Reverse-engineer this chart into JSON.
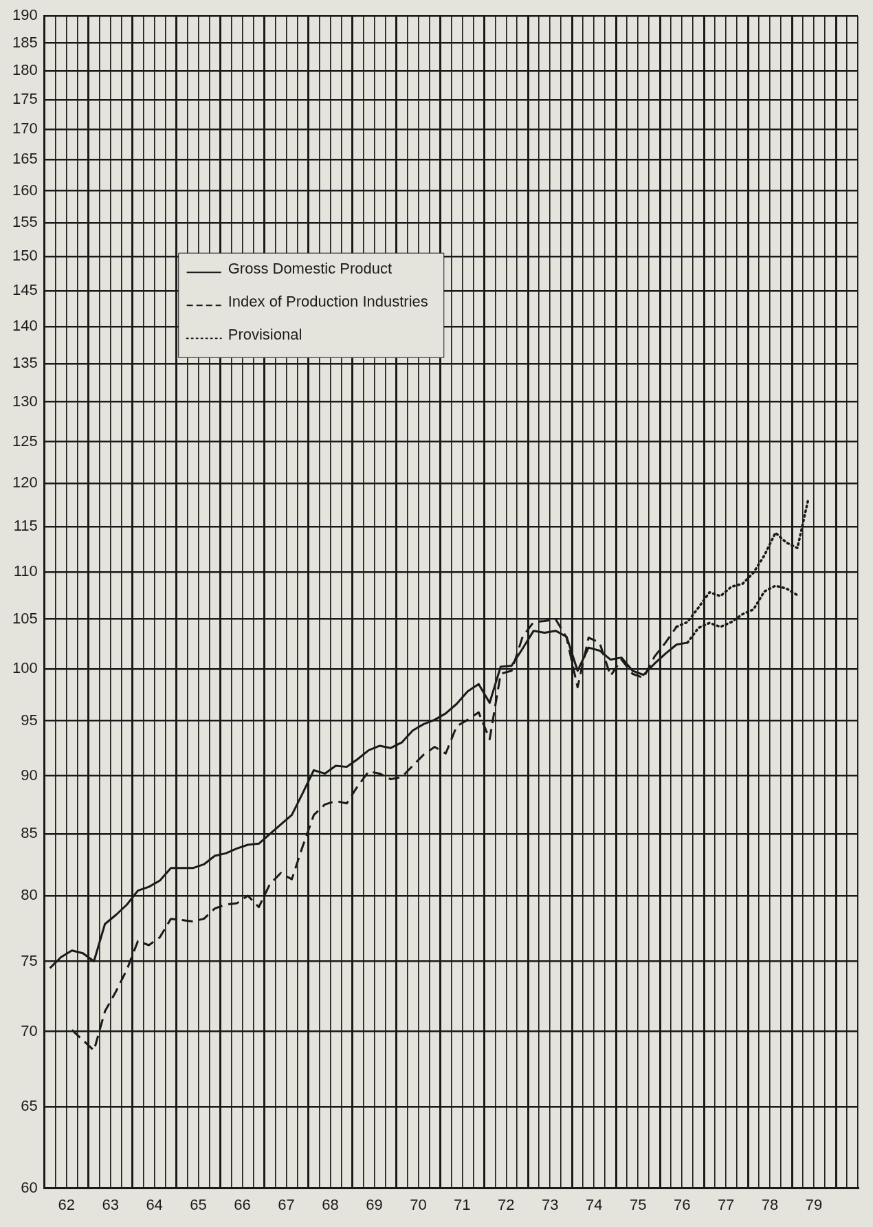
{
  "chart_data": {
    "type": "line",
    "log": true,
    "grid": true,
    "legend": "top left",
    "xlim": [
      61.5,
      80
    ],
    "ylim": [
      60,
      190
    ],
    "yticks": [
      60,
      65,
      70,
      75,
      80,
      85,
      90,
      95,
      100,
      105,
      110,
      115,
      120,
      125,
      130,
      135,
      140,
      145,
      150,
      155,
      160,
      165,
      170,
      175,
      180,
      185,
      190
    ],
    "xticks": [
      {
        "value": 61.5,
        "label": null
      },
      {
        "value": 61.75,
        "label": null
      },
      62,
      {
        "value": 62.25,
        "label": null
      },
      {
        "value": 62.5,
        "label": null
      },
      {
        "value": 62.75,
        "label": null
      },
      63,
      {
        "value": 63.25,
        "label": null
      },
      {
        "value": 63.5,
        "label": null
      },
      {
        "value": 63.75,
        "label": null
      },
      64,
      {
        "value": 64.25,
        "label": null
      },
      {
        "value": 64.5,
        "label": null
      },
      {
        "value": 64.75,
        "label": null
      },
      65,
      {
        "value": 65.25,
        "label": null
      },
      {
        "value": 65.5,
        "label": null
      },
      {
        "value": 65.75,
        "label": null
      },
      66,
      {
        "value": 66.25,
        "label": null
      },
      {
        "value": 66.5,
        "label": null
      },
      {
        "value": 66.75,
        "label": null
      },
      67,
      {
        "value": 67.25,
        "label": null
      },
      {
        "value": 67.5,
        "label": null
      },
      {
        "value": 67.75,
        "label": null
      },
      68,
      {
        "value": 68.25,
        "label": null
      },
      {
        "value": 68.5,
        "label": null
      },
      {
        "value": 68.75,
        "label": null
      },
      69,
      {
        "value": 69.25,
        "label": null
      },
      {
        "value": 69.5,
        "label": null
      },
      {
        "value": 69.75,
        "label": null
      },
      70,
      {
        "value": 70.25,
        "label": null
      },
      {
        "value": 70.5,
        "label": null
      },
      {
        "value": 70.75,
        "label": null
      },
      71,
      {
        "value": 71.25,
        "label": null
      },
      {
        "value": 71.5,
        "label": null
      },
      {
        "value": 71.75,
        "label": null
      },
      72,
      {
        "value": 72.25,
        "label": null
      },
      {
        "value": 72.5,
        "label": null
      },
      {
        "value": 72.75,
        "label": null
      },
      73,
      {
        "value": 73.25,
        "label": null
      },
      {
        "value": 73.5,
        "label": null
      },
      {
        "value": 73.75,
        "label": null
      },
      74,
      {
        "value": 74.25,
        "label": null
      },
      {
        "value": 74.5,
        "label": null
      },
      {
        "value": 74.75,
        "label": null
      },
      75,
      {
        "value": 75.25,
        "label": null
      },
      {
        "value": 75.5,
        "label": null
      },
      {
        "value": 75.75,
        "label": null
      },
      76,
      {
        "value": 76.25,
        "label": null
      },
      {
        "value": 76.5,
        "label": null
      },
      {
        "value": 76.75,
        "label": null
      },
      77,
      {
        "value": 77.25,
        "label": null
      },
      {
        "value": 77.5,
        "label": null
      },
      {
        "value": 77.75,
        "label": null
      },
      78,
      {
        "value": 78.25,
        "label": null
      },
      {
        "value": 78.5,
        "label": null
      },
      {
        "value": 78.75,
        "label": null
      },
      79,
      {
        "value": 79.25,
        "label": null
      },
      {
        "value": 79.5,
        "label": null
      },
      {
        "value": 79.75,
        "label": null
      },
      {
        "value": 80,
        "label": null
      }
    ],
    "x": [
      61.625,
      61.875,
      62.125,
      62.375,
      62.625,
      62.875,
      63.125,
      63.375,
      63.625,
      63.875,
      64.125,
      64.375,
      64.625,
      64.875,
      65.125,
      65.375,
      65.625,
      65.875,
      66.125,
      66.375,
      66.625,
      66.875,
      67.125,
      67.375,
      67.625,
      67.875,
      68.125,
      68.375,
      68.625,
      68.875,
      69.125,
      69.375,
      69.625,
      69.875,
      70.125,
      70.375,
      70.625,
      70.875,
      71.125,
      71.375,
      71.625,
      71.875,
      72.125,
      72.375,
      72.625,
      72.875,
      73.125,
      73.375,
      73.625,
      73.875,
      74.125,
      74.375,
      74.625,
      74.875,
      75.125,
      75.375,
      75.625,
      75.875,
      76.125,
      76.375,
      76.625,
      76.875,
      77.125,
      77.375,
      77.625,
      77.875,
      78.125,
      78.375,
      78.625,
      78.875
    ],
    "series": [
      {
        "name": "Gross Domestic Product",
        "color": "#1a1a1a",
        "line_style": "solid",
        "values": [
          74.5,
          75.3,
          75.8,
          75.6,
          75.0,
          77.8,
          78.5,
          79.3,
          80.4,
          80.7,
          81.2,
          82.2,
          82.2,
          82.2,
          82.5,
          83.2,
          83.4,
          83.8,
          84.1,
          84.2,
          85.0,
          85.8,
          86.6,
          88.5,
          90.5,
          90.2,
          90.9,
          90.8,
          91.5,
          92.3,
          92.7,
          92.5,
          93.0,
          94.1,
          94.7,
          95.1,
          95.7,
          96.6,
          97.8,
          98.5,
          96.7,
          100.2,
          100.3,
          102.0,
          103.8,
          103.6,
          103.8,
          103.2,
          99.8,
          102.1,
          101.8,
          100.9,
          101.1,
          99.8,
          99.4,
          100.5,
          101.5,
          102.4,
          102.6,
          null,
          null,
          null,
          null,
          null,
          null,
          null,
          null,
          null,
          null,
          null
        ]
      },
      {
        "name": "Index of Production Industries",
        "color": "#1a1a1a",
        "line_style": "dashed",
        "values": [
          null,
          null,
          70.1,
          69.4,
          68.7,
          71.4,
          72.8,
          74.4,
          76.5,
          76.2,
          76.8,
          78.2,
          78.1,
          78.0,
          78.2,
          79.0,
          79.3,
          79.4,
          80.0,
          79.1,
          80.9,
          81.8,
          81.3,
          84.0,
          86.6,
          87.5,
          87.8,
          87.6,
          89.1,
          90.4,
          90.2,
          89.7,
          89.9,
          90.9,
          91.9,
          92.6,
          92.0,
          94.5,
          95.1,
          95.8,
          93.3,
          99.5,
          99.8,
          103.2,
          104.7,
          104.8,
          105.0,
          103.1,
          98.2,
          103.1,
          102.6,
          99.3,
          100.9,
          99.5,
          99.1,
          101.2,
          102.6,
          104.2,
          null,
          null,
          null,
          null,
          null,
          null,
          null,
          null,
          null,
          null,
          null,
          null
        ]
      },
      {
        "name": "Provisional",
        "color": "#1a1a1a",
        "line_style": "dotted",
        "values": [
          null,
          null,
          null,
          null,
          null,
          null,
          null,
          null,
          null,
          null,
          null,
          null,
          null,
          null,
          null,
          null,
          null,
          null,
          null,
          null,
          null,
          null,
          null,
          null,
          null,
          null,
          null,
          null,
          null,
          null,
          null,
          null,
          null,
          null,
          null,
          null,
          null,
          null,
          null,
          null,
          null,
          null,
          null,
          null,
          null,
          null,
          null,
          null,
          null,
          null,
          null,
          null,
          null,
          null,
          null,
          null,
          null,
          104.2,
          104.7,
          106.2,
          107.8,
          107.4,
          108.4,
          108.7,
          109.9,
          111.8,
          114.3,
          113.2,
          112.6,
          118.2
        ]
      },
      {
        "color": "#1a1a1a",
        "line_style": "dotted",
        "values": [
          null,
          null,
          null,
          null,
          null,
          null,
          null,
          null,
          null,
          null,
          null,
          null,
          null,
          null,
          null,
          null,
          null,
          null,
          null,
          null,
          null,
          null,
          null,
          null,
          null,
          null,
          null,
          null,
          null,
          null,
          null,
          null,
          null,
          null,
          null,
          null,
          null,
          null,
          null,
          null,
          null,
          null,
          null,
          null,
          null,
          null,
          null,
          null,
          null,
          null,
          null,
          null,
          null,
          null,
          null,
          null,
          null,
          null,
          102.6,
          104.1,
          104.6,
          104.2,
          104.7,
          105.5,
          106.0,
          107.9,
          108.5,
          108.2,
          107.5,
          null
        ]
      }
    ]
  }
}
